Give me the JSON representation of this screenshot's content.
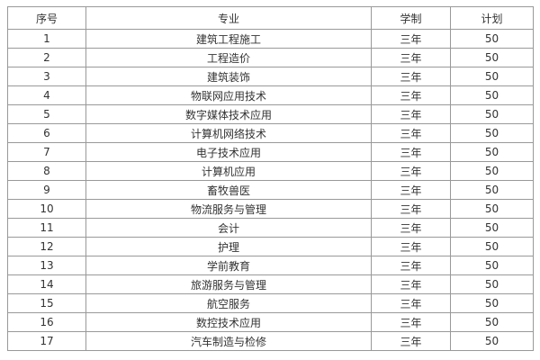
{
  "table": {
    "columns": [
      "序号",
      "专业",
      "学制",
      "计划"
    ],
    "rows": [
      {
        "no": "1",
        "major": "建筑工程施工",
        "duration": "三年",
        "plan": "50"
      },
      {
        "no": "2",
        "major": "工程造价",
        "duration": "三年",
        "plan": "50"
      },
      {
        "no": "3",
        "major": "建筑装饰",
        "duration": "三年",
        "plan": "50"
      },
      {
        "no": "4",
        "major": "物联网应用技术",
        "duration": "三年",
        "plan": "50"
      },
      {
        "no": "5",
        "major": "数字媒体技术应用",
        "duration": "三年",
        "plan": "50"
      },
      {
        "no": "6",
        "major": "计算机网络技术",
        "duration": "三年",
        "plan": "50"
      },
      {
        "no": "7",
        "major": "电子技术应用",
        "duration": "三年",
        "plan": "50"
      },
      {
        "no": "8",
        "major": "计算机应用",
        "duration": "三年",
        "plan": "50"
      },
      {
        "no": "9",
        "major": "畜牧兽医",
        "duration": "三年",
        "plan": "50"
      },
      {
        "no": "10",
        "major": "物流服务与管理",
        "duration": "三年",
        "plan": "50"
      },
      {
        "no": "11",
        "major": "会计",
        "duration": "三年",
        "plan": "50"
      },
      {
        "no": "12",
        "major": "护理",
        "duration": "三年",
        "plan": "50"
      },
      {
        "no": "13",
        "major": "学前教育",
        "duration": "三年",
        "plan": "50"
      },
      {
        "no": "14",
        "major": "旅游服务与管理",
        "duration": "三年",
        "plan": "50"
      },
      {
        "no": "15",
        "major": "航空服务",
        "duration": "三年",
        "plan": "50"
      },
      {
        "no": "16",
        "major": "数控技术应用",
        "duration": "三年",
        "plan": "50"
      },
      {
        "no": "17",
        "major": "汽车制造与检修",
        "duration": "三年",
        "plan": "50"
      }
    ],
    "colors": {
      "border": "#999999",
      "text": "#333333",
      "background": "#ffffff"
    }
  }
}
